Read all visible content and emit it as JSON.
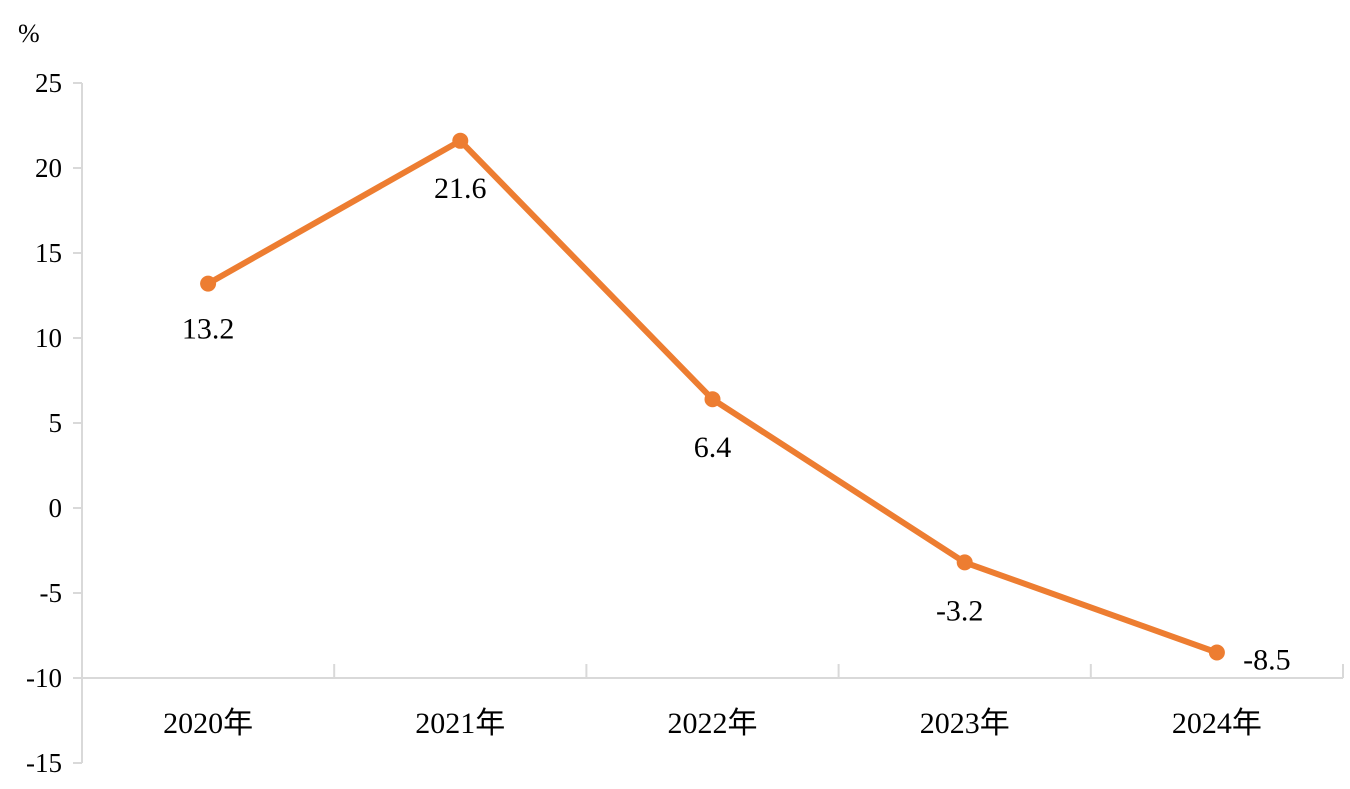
{
  "chart_data": {
    "type": "line",
    "title": "",
    "xlabel": "",
    "ylabel": "%",
    "categories": [
      "2020年",
      "2021年",
      "2022年",
      "2023年",
      "2024年"
    ],
    "series": [
      {
        "values": [
          13.2,
          21.6,
          6.4,
          -3.2,
          -8.5
        ],
        "data_labels": [
          "13.2",
          "21.6",
          "6.4",
          "-3.2",
          "-8.5"
        ],
        "color": "#ED7D31"
      }
    ],
    "ylim": [
      -15,
      25
    ],
    "yticks": [
      25,
      20,
      15,
      10,
      5,
      0,
      -5,
      -10,
      -15
    ],
    "ytick_labels": [
      "25",
      "20",
      "15",
      "10",
      "5",
      "0",
      "-5",
      "-10",
      "-15"
    ],
    "x_axis_at": -10,
    "grid": false,
    "legend": "none"
  }
}
